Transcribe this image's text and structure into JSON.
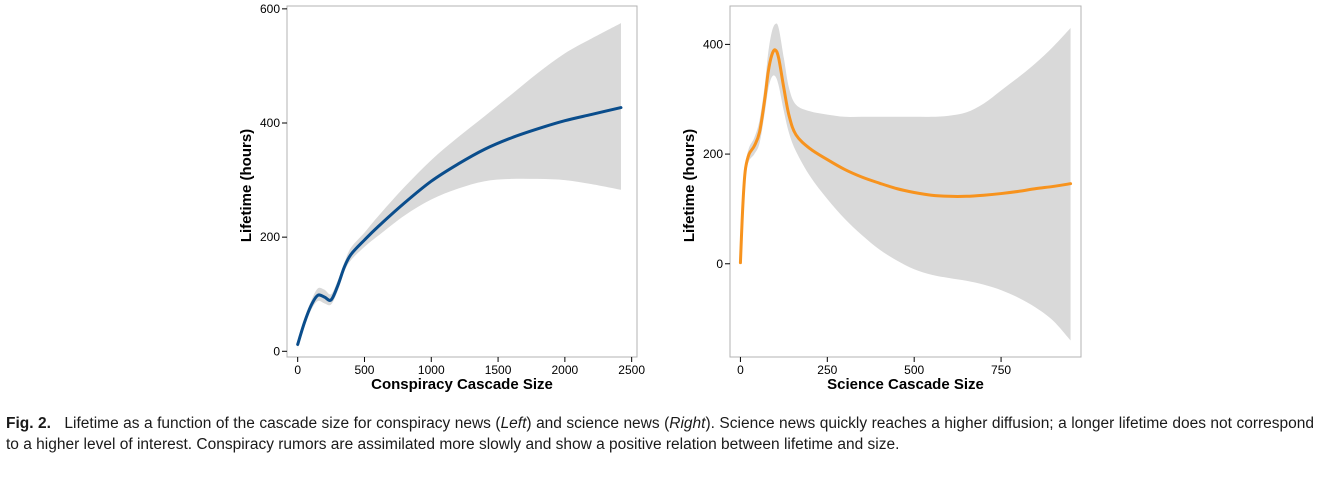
{
  "caption": {
    "label": "Fig. 2.",
    "part1": "Lifetime as a function of the cascade size for conspiracy news (",
    "left": "Left",
    "part2": ") and science news (",
    "right": "Right",
    "part3": "). Science news quickly reaches a higher diffusion; a longer lifetime does not correspond to a higher level of interest. Conspiracy rumors are assimilated more slowly and show a positive relation between lifetime and size."
  },
  "colors": {
    "left_line": "#0a4d8c",
    "right_line": "#f7931e",
    "band": "#d9d9d9",
    "frame": "#b3b3b3"
  },
  "chart_data": [
    {
      "type": "line",
      "xlabel": "Conspiracy Cascade Size",
      "ylabel": "Lifetime (hours)",
      "xlim": [
        -80,
        2540
      ],
      "ylim": [
        -10,
        605
      ],
      "xticks": [
        0,
        500,
        1000,
        1500,
        2000,
        2500
      ],
      "yticks": [
        0,
        200,
        400,
        600
      ],
      "grid": false,
      "series": [
        {
          "x": [
            0,
            50,
            100,
            150,
            200,
            250,
            300,
            350,
            400,
            500,
            600,
            800,
            1000,
            1200,
            1400,
            1600,
            1800,
            2000,
            2200,
            2420
          ],
          "y": [
            12,
            50,
            80,
            98,
            95,
            90,
            115,
            148,
            170,
            195,
            218,
            260,
            298,
            328,
            354,
            374,
            390,
            404,
            415,
            427
          ],
          "lower": [
            5,
            42,
            72,
            88,
            84,
            82,
            106,
            140,
            160,
            183,
            202,
            238,
            266,
            285,
            298,
            302,
            302,
            300,
            293,
            283
          ],
          "upper": [
            18,
            58,
            88,
            110,
            108,
            100,
            124,
            156,
            182,
            208,
            236,
            288,
            335,
            375,
            412,
            450,
            488,
            522,
            548,
            575
          ]
        }
      ]
    },
    {
      "type": "line",
      "xlabel": "Science Cascade Size",
      "ylabel": "Lifetime (hours)",
      "xlim": [
        -30,
        980
      ],
      "ylim": [
        -170,
        470
      ],
      "xticks": [
        0,
        250,
        500,
        750
      ],
      "yticks": [
        0,
        200,
        400
      ],
      "grid": false,
      "series": [
        {
          "x": [
            0,
            5,
            10,
            15,
            25,
            40,
            55,
            70,
            80,
            90,
            100,
            110,
            125,
            140,
            160,
            200,
            250,
            300,
            350,
            400,
            450,
            500,
            550,
            600,
            650,
            700,
            750,
            800,
            850,
            900,
            950
          ],
          "y": [
            2,
            80,
            140,
            175,
            200,
            215,
            240,
            300,
            350,
            380,
            390,
            375,
            320,
            270,
            235,
            210,
            190,
            172,
            158,
            147,
            137,
            130,
            125,
            123,
            123,
            125,
            128,
            132,
            137,
            141,
            146
          ],
          "lower": [
            2,
            75,
            132,
            165,
            188,
            200,
            220,
            275,
            318,
            340,
            342,
            325,
            278,
            238,
            205,
            160,
            118,
            82,
            52,
            26,
            6,
            -10,
            -20,
            -26,
            -31,
            -38,
            -48,
            -62,
            -80,
            -104,
            -140
          ],
          "upper": [
            2,
            85,
            148,
            185,
            212,
            230,
            262,
            326,
            385,
            422,
            437,
            430,
            375,
            320,
            290,
            278,
            272,
            268,
            268,
            268,
            268,
            268,
            268,
            270,
            276,
            292,
            316,
            340,
            366,
            396,
            430
          ]
        }
      ]
    }
  ]
}
